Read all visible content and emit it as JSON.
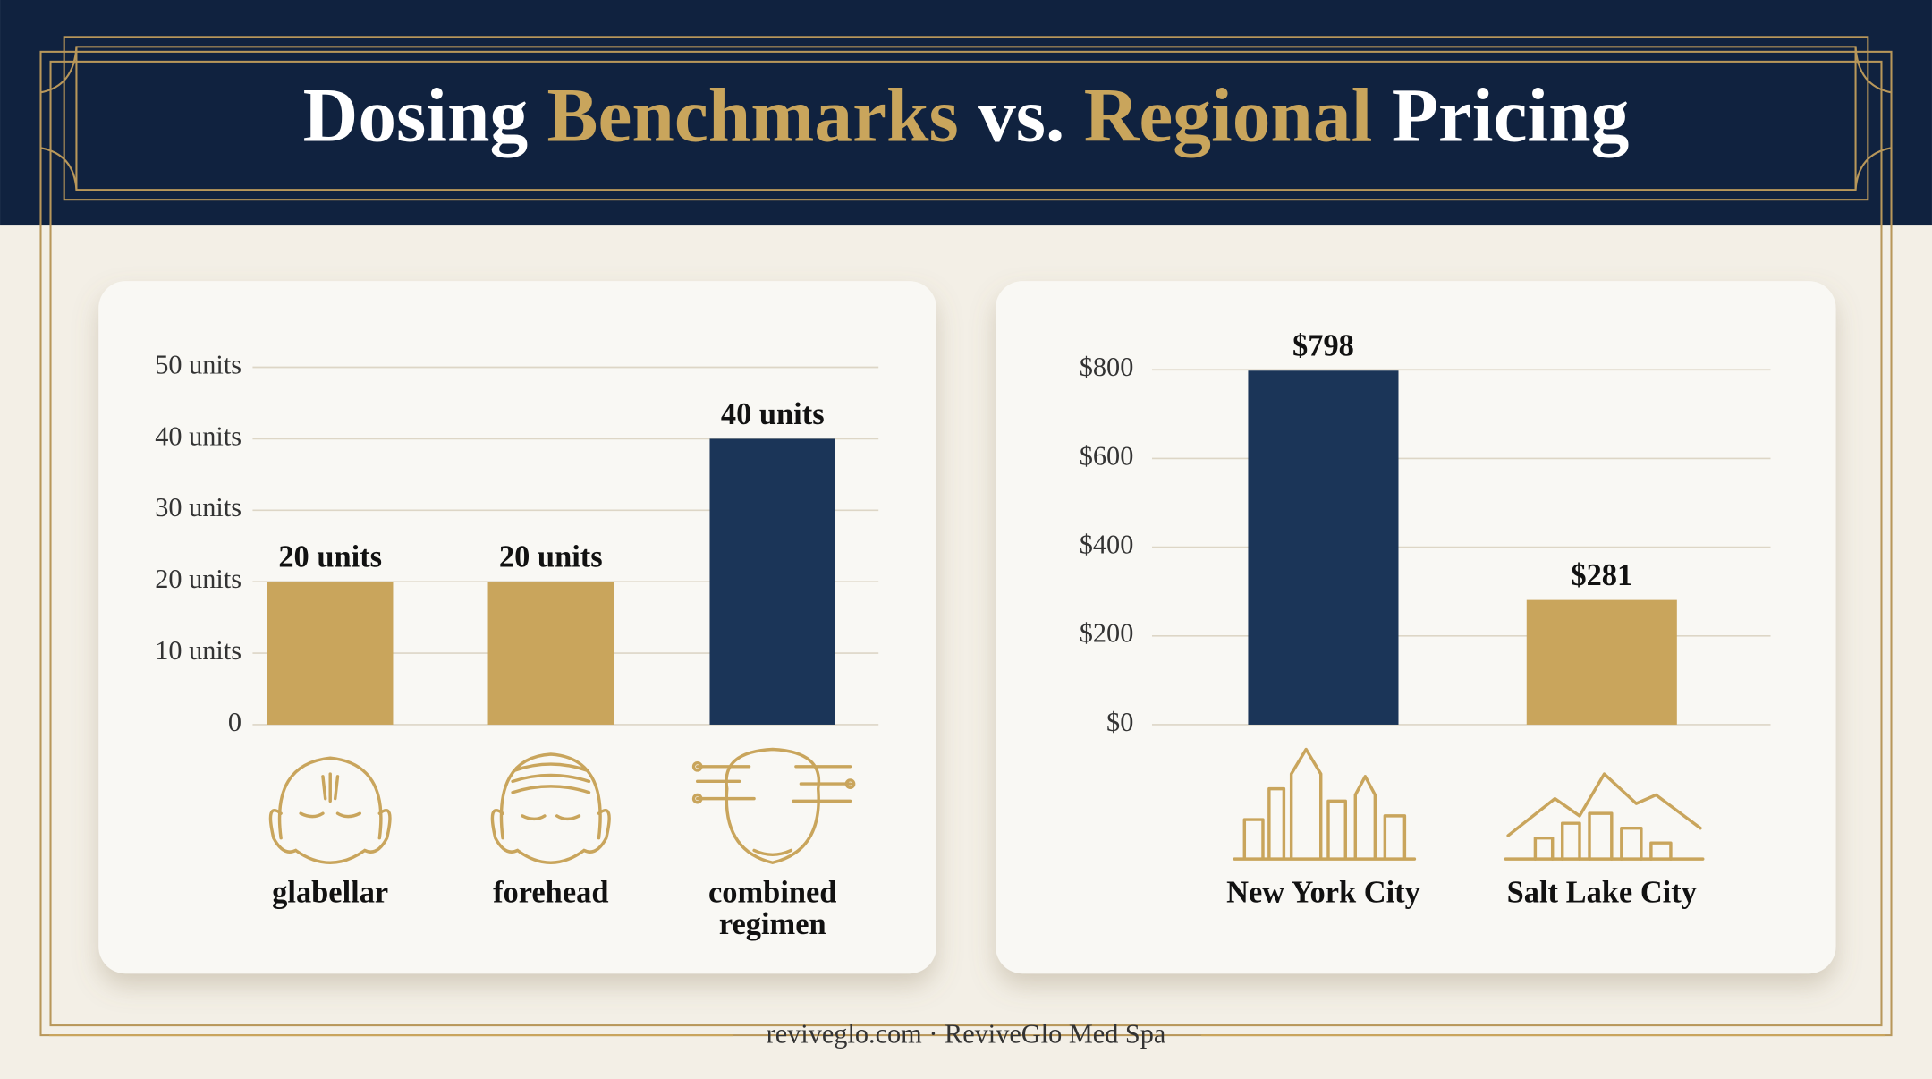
{
  "title_words": [
    "Dosing",
    "Benchmarks",
    "vs.",
    "Regional",
    "Pricing"
  ],
  "title_colors": [
    "#ffffff",
    "#c9a55c",
    "#ffffff",
    "#c9a55c",
    "#ffffff"
  ],
  "footer": "reviveglo.com · ReviveGlo Med Spa",
  "chart_data": [
    {
      "type": "bar",
      "categories": [
        "glabellar",
        "forehead",
        "combined regimen"
      ],
      "values": [
        20,
        20,
        40
      ],
      "value_labels": [
        "20 units",
        "20 units",
        "40 units"
      ],
      "colors": [
        "#c9a55c",
        "#c9a55c",
        "#1b3558"
      ],
      "ylim": [
        0,
        50
      ],
      "yticks": [
        0,
        {
          "value": 10,
          "label": "10 units"
        },
        {
          "value": 20,
          "label": "20 units"
        },
        {
          "value": 30,
          "label": "30 units"
        },
        {
          "value": 40,
          "label": "40 units"
        },
        {
          "value": 50,
          "label": "50 units"
        }
      ],
      "grid": true
    },
    {
      "type": "bar",
      "categories": [
        "New York City",
        "Salt Lake City"
      ],
      "values": [
        798,
        281
      ],
      "value_labels": [
        "$798",
        "$281"
      ],
      "colors": [
        "#1b3558",
        "#c9a55c"
      ],
      "ylim": [
        0,
        800
      ],
      "yticks": [
        {
          "value": 0,
          "label": "$0"
        },
        {
          "value": 200,
          "label": "$200"
        },
        {
          "value": 400,
          "label": "$400"
        },
        {
          "value": 600,
          "label": "$600"
        },
        {
          "value": 800,
          "label": "$800"
        }
      ],
      "grid": true
    }
  ]
}
